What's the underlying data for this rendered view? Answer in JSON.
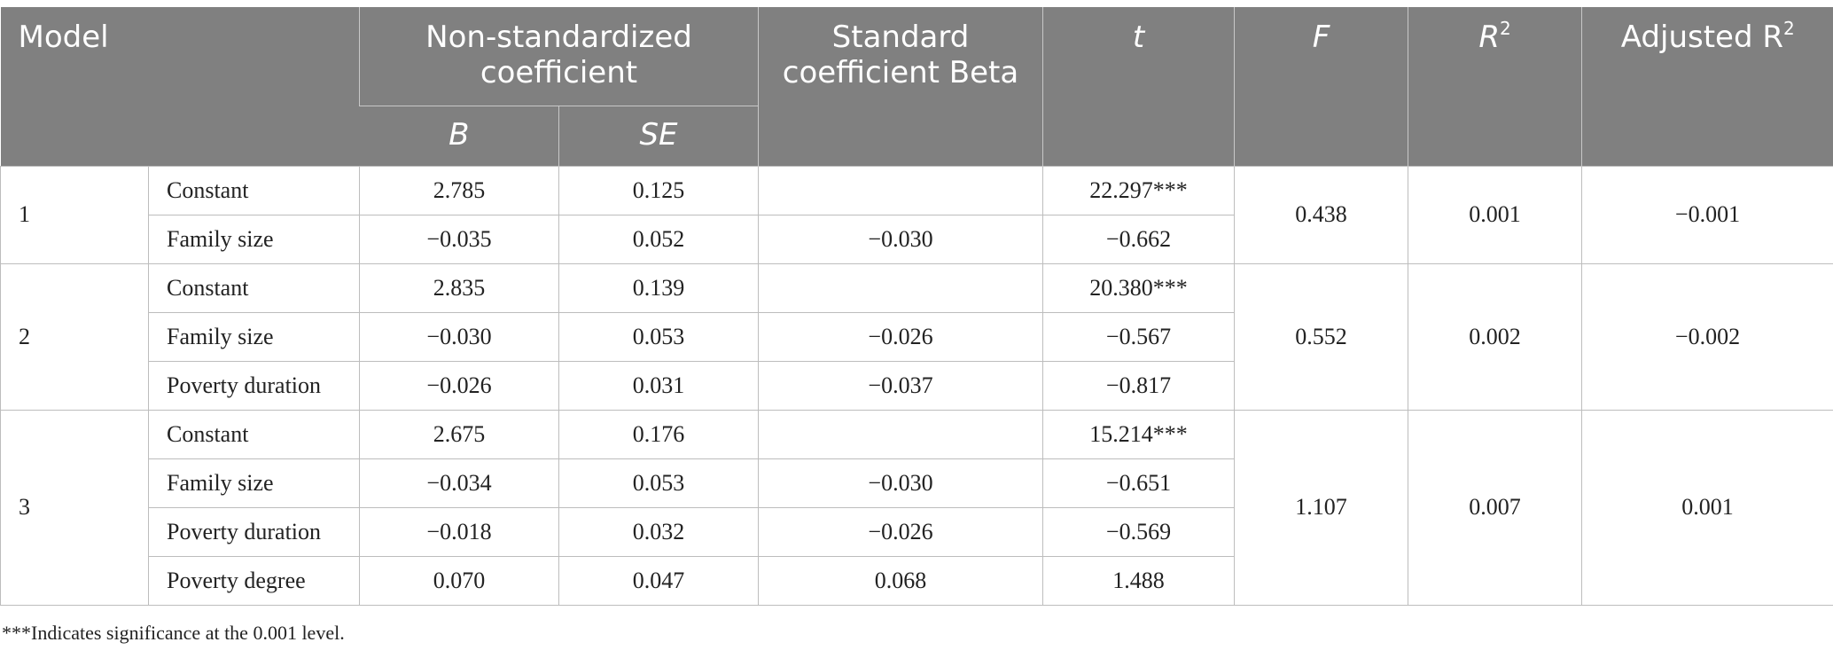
{
  "header": {
    "model": "Model",
    "coef_group": "Non-standardized coefficient",
    "B": "B",
    "SE": "SE",
    "beta": "Standard coefficient Beta",
    "t": "t",
    "F": "F",
    "R2_base": "R",
    "R2_sup": "2",
    "adjR2_base": "Adjusted R",
    "adjR2_sup": "2"
  },
  "models": [
    {
      "model": "1",
      "F": "0.438",
      "R2": "0.001",
      "adjR2": "−0.001",
      "rows": [
        {
          "variable": "Constant",
          "B": "2.785",
          "SE": "0.125",
          "beta": "",
          "t": "22.297***"
        },
        {
          "variable": "Family size",
          "B": "−0.035",
          "SE": "0.052",
          "beta": "−0.030",
          "t": "−0.662"
        }
      ]
    },
    {
      "model": "2",
      "F": "0.552",
      "R2": "0.002",
      "adjR2": "−0.002",
      "rows": [
        {
          "variable": "Constant",
          "B": "2.835",
          "SE": "0.139",
          "beta": "",
          "t": "20.380***"
        },
        {
          "variable": "Family size",
          "B": "−0.030",
          "SE": "0.053",
          "beta": "−0.026",
          "t": "−0.567"
        },
        {
          "variable": "Poverty duration",
          "B": "−0.026",
          "SE": "0.031",
          "beta": "−0.037",
          "t": "−0.817"
        }
      ]
    },
    {
      "model": "3",
      "F": "1.107",
      "R2": "0.007",
      "adjR2": "0.001",
      "rows": [
        {
          "variable": "Constant",
          "B": "2.675",
          "SE": "0.176",
          "beta": "",
          "t": "15.214***"
        },
        {
          "variable": "Family size",
          "B": "−0.034",
          "SE": "0.053",
          "beta": "−0.030",
          "t": "−0.651"
        },
        {
          "variable": "Poverty duration",
          "B": "−0.018",
          "SE": "0.032",
          "beta": "−0.026",
          "t": "−0.569"
        },
        {
          "variable": "Poverty degree",
          "B": "0.070",
          "SE": "0.047",
          "beta": "0.068",
          "t": "1.488"
        }
      ]
    }
  ],
  "footnote": "***Indicates significance at the 0.001 level."
}
